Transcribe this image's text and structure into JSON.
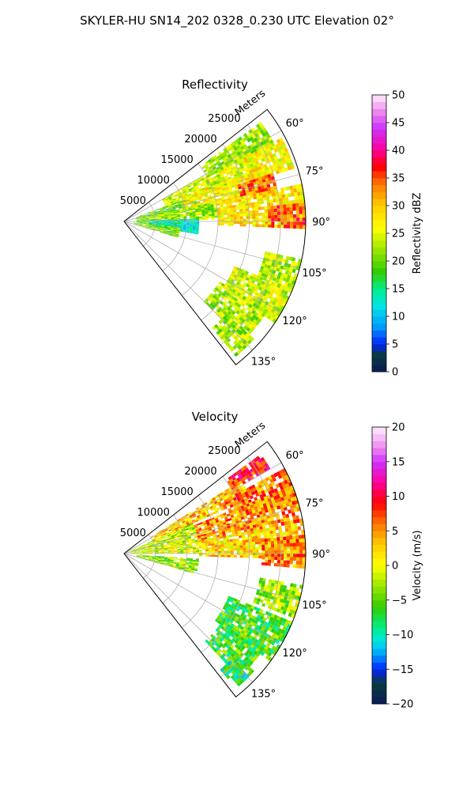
{
  "figure": {
    "title": "SKYLER-HU  SN14_202  0328_0.230 UTC Elevation 02°"
  },
  "chart_data": [
    {
      "type": "heatmap",
      "subtype": "polar-sector-ppi",
      "title": "Reflectivity",
      "radial_axis_label": "Meters",
      "radial_ticks": [
        5000,
        10000,
        15000,
        20000,
        25000
      ],
      "radial_tick_labels": [
        "5000",
        "10000",
        "15000",
        "20000",
        "25000"
      ],
      "range_max_m": 29000,
      "azimuth_range_deg": [
        52,
        142
      ],
      "azimuth_ticks": [
        60,
        75,
        90,
        105,
        120,
        135
      ],
      "azimuth_tick_labels": [
        "60°",
        "75°",
        "90°",
        "105°",
        "120°",
        "135°"
      ],
      "grid": true,
      "colorbar": {
        "label": "Reflectivity dBZ",
        "range": [
          0,
          50
        ],
        "ticks": [
          0,
          5,
          10,
          15,
          20,
          25,
          30,
          35,
          40,
          45,
          50
        ],
        "tick_labels": [
          "0",
          "5",
          "10",
          "15",
          "20",
          "25",
          "30",
          "35",
          "40",
          "45",
          "50"
        ],
        "stops": [
          {
            "v": 0,
            "c": "#0b1a5a"
          },
          {
            "v": 3,
            "c": "#0b3b3b"
          },
          {
            "v": 5,
            "c": "#0022ff"
          },
          {
            "v": 8,
            "c": "#0099ff"
          },
          {
            "v": 12,
            "c": "#00e6e6"
          },
          {
            "v": 15,
            "c": "#00ee88"
          },
          {
            "v": 18,
            "c": "#33cc00"
          },
          {
            "v": 22,
            "c": "#99e600"
          },
          {
            "v": 26,
            "c": "#ffff00"
          },
          {
            "v": 30,
            "c": "#ffcc00"
          },
          {
            "v": 34,
            "c": "#ff7700"
          },
          {
            "v": 37,
            "c": "#ff0000"
          },
          {
            "v": 40,
            "c": "#ff0099"
          },
          {
            "v": 44,
            "c": "#cc33ff"
          },
          {
            "v": 47,
            "c": "#ee88ee"
          },
          {
            "v": 50,
            "c": "#ffeeff"
          }
        ]
      },
      "cells": [
        {
          "az": [
            54,
            62
          ],
          "r": [
            15000,
            27000
          ],
          "v": 22
        },
        {
          "az": [
            60,
            70
          ],
          "r": [
            7000,
            23000
          ],
          "v": 24
        },
        {
          "az": [
            62,
            72
          ],
          "r": [
            21000,
            28500
          ],
          "v": 27
        },
        {
          "az": [
            70,
            80
          ],
          "r": [
            2000,
            12000
          ],
          "v": 20
        },
        {
          "az": [
            68,
            80
          ],
          "r": [
            10000,
            24000
          ],
          "v": 27
        },
        {
          "az": [
            72,
            80
          ],
          "r": [
            19000,
            25000
          ],
          "v": 34
        },
        {
          "az": [
            78,
            88
          ],
          "r": [
            2000,
            15000
          ],
          "v": 22
        },
        {
          "az": [
            78,
            92
          ],
          "r": [
            15000,
            29000
          ],
          "v": 28
        },
        {
          "az": [
            84,
            92
          ],
          "r": [
            23000,
            29000
          ],
          "v": 35
        },
        {
          "az": [
            88,
            96
          ],
          "r": [
            2000,
            8000
          ],
          "v": 19
        },
        {
          "az": [
            88,
            100
          ],
          "r": [
            4000,
            12000
          ],
          "v": 13
        },
        {
          "az": [
            96,
            106
          ],
          "r": [
            1500,
            9000
          ],
          "v": 21
        },
        {
          "az": [
            102,
            112
          ],
          "r": [
            23000,
            29000
          ],
          "v": 23
        },
        {
          "az": [
            112,
            124
          ],
          "r": [
            19000,
            29000
          ],
          "v": 24
        },
        {
          "az": [
            122,
            134
          ],
          "r": [
            18000,
            27000
          ],
          "v": 23
        },
        {
          "az": [
            132,
            140
          ],
          "r": [
            22000,
            28000
          ],
          "v": 22
        }
      ]
    },
    {
      "type": "heatmap",
      "subtype": "polar-sector-ppi",
      "title": "Velocity",
      "radial_axis_label": "Meters",
      "radial_ticks": [
        5000,
        10000,
        15000,
        20000,
        25000
      ],
      "radial_tick_labels": [
        "5000",
        "10000",
        "15000",
        "20000",
        "25000"
      ],
      "range_max_m": 29000,
      "azimuth_range_deg": [
        52,
        142
      ],
      "azimuth_ticks": [
        60,
        75,
        90,
        105,
        120,
        135
      ],
      "azimuth_tick_labels": [
        "60°",
        "75°",
        "90°",
        "105°",
        "120°",
        "135°"
      ],
      "grid": true,
      "colorbar": {
        "label": "Velocity (m/s)",
        "range": [
          -20,
          20
        ],
        "ticks": [
          -20,
          -15,
          -10,
          -5,
          0,
          5,
          10,
          15,
          20
        ],
        "tick_labels": [
          "−20",
          "−15",
          "−10",
          "−5",
          "0",
          "5",
          "10",
          "15",
          "20"
        ],
        "stops": [
          {
            "v": -20,
            "c": "#0b1a5a"
          },
          {
            "v": -17,
            "c": "#0b3b3b"
          },
          {
            "v": -15,
            "c": "#0022ff"
          },
          {
            "v": -13,
            "c": "#0099ff"
          },
          {
            "v": -11,
            "c": "#00e6e6"
          },
          {
            "v": -9,
            "c": "#00ee88"
          },
          {
            "v": -6,
            "c": "#33cc00"
          },
          {
            "v": -3,
            "c": "#99e600"
          },
          {
            "v": 0,
            "c": "#ffff00"
          },
          {
            "v": 3,
            "c": "#ffcc00"
          },
          {
            "v": 6,
            "c": "#ff7700"
          },
          {
            "v": 9,
            "c": "#ff0000"
          },
          {
            "v": 12,
            "c": "#ff0099"
          },
          {
            "v": 15,
            "c": "#cc33ff"
          },
          {
            "v": 17,
            "c": "#ee88ee"
          },
          {
            "v": 20,
            "c": "#ffeeff"
          }
        ]
      },
      "cells": [
        {
          "az": [
            54,
            60
          ],
          "r": [
            20000,
            27000
          ],
          "v": 9
        },
        {
          "az": [
            58,
            66
          ],
          "r": [
            5000,
            22000
          ],
          "v": 3
        },
        {
          "az": [
            62,
            72
          ],
          "r": [
            18000,
            29000
          ],
          "v": 6
        },
        {
          "az": [
            66,
            78
          ],
          "r": [
            1000,
            12000
          ],
          "v": -2
        },
        {
          "az": [
            68,
            80
          ],
          "r": [
            12000,
            29000
          ],
          "v": 5
        },
        {
          "az": [
            78,
            90
          ],
          "r": [
            1000,
            12000
          ],
          "v": -1
        },
        {
          "az": [
            80,
            92
          ],
          "r": [
            12000,
            29000
          ],
          "v": 2
        },
        {
          "az": [
            84,
            94
          ],
          "r": [
            22000,
            29000
          ],
          "v": 5
        },
        {
          "az": [
            94,
            106
          ],
          "r": [
            2000,
            12000
          ],
          "v": -3
        },
        {
          "az": [
            100,
            110
          ],
          "r": [
            22000,
            29000
          ],
          "v": -3
        },
        {
          "az": [
            112,
            126
          ],
          "r": [
            18000,
            29000
          ],
          "v": -6
        },
        {
          "az": [
            124,
            136
          ],
          "r": [
            19000,
            27000
          ],
          "v": -6
        },
        {
          "az": [
            132,
            140
          ],
          "r": [
            24000,
            28000
          ],
          "v": -8
        }
      ]
    }
  ]
}
